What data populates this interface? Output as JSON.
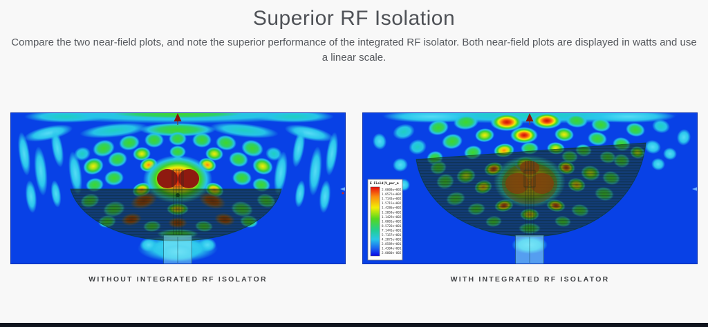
{
  "section": {
    "title": "Superior RF Isolation",
    "description": "Compare the two near-field plots, and note the superior performance of the integrated RF isolator. Both near-field plots are displayed in watts and use a linear scale."
  },
  "plots": {
    "left": {
      "caption": "WITHOUT INTEGRATED RF ISOLATOR"
    },
    "right": {
      "caption": "WITH INTEGRATED RF ISOLATOR",
      "legend": {
        "title": "E Field[V_per_m",
        "values": [
          "2.0000e+002",
          "1.8572e+002",
          "1.7143e+002",
          "1.5715e+002",
          "1.4286e+002",
          "1.2858e+002",
          "1.1429e+002",
          "1.0001e+002",
          "8.5726e+001",
          "7.1441e+001",
          "5.7157e+001",
          "4.2873e+001",
          "2.8589e+001",
          "1.4304e+001",
          "2.0000e-002"
        ],
        "scale_colors": [
          "#e80c0c",
          "#fb8d0e",
          "#f2ee05",
          "#55d81e",
          "#22cf8e",
          "#28c6e8",
          "#1b64f0",
          "#0a08e8"
        ]
      }
    }
  },
  "colors": {
    "field_background_blue": "#0841e6",
    "field_cyan": "#29c4ea",
    "field_green": "#3bd42a",
    "field_yellow": "#f2ee05",
    "field_orange": "#fb8d0e",
    "field_red": "#e8230e",
    "feed_hotspot_dark_red": "#8e1a10",
    "footer_bar": "#10141d",
    "text_gray": "#55585d"
  }
}
